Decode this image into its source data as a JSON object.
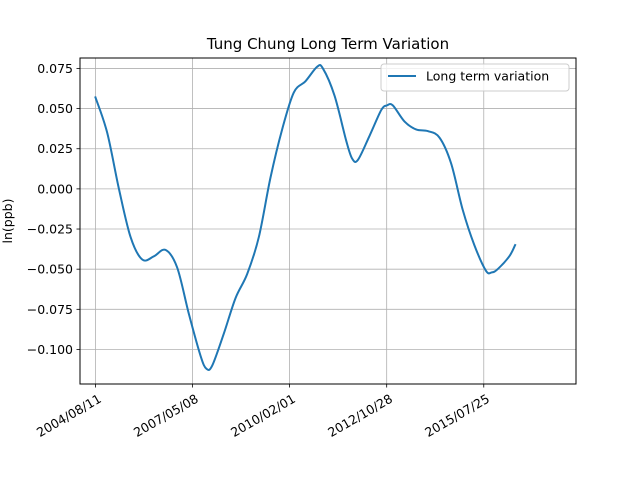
{
  "chart_data": {
    "type": "line",
    "title": "Tung Chung Long Term Variation",
    "xlabel": "",
    "ylabel": "ln(ppb)",
    "x_axis_type": "date",
    "xlim": [
      "2004/03/05",
      "2018/03/01"
    ],
    "ylim": [
      -0.1215,
      0.0815
    ],
    "x_ticks": [
      "2004/08/11",
      "2007/05/08",
      "2010/02/01",
      "2012/10/28",
      "2015/07/25"
    ],
    "y_ticks": [
      0.075,
      0.05,
      0.025,
      0.0,
      -0.025,
      -0.05,
      -0.075,
      -0.1
    ],
    "y_tick_labels": [
      "0.075",
      "0.050",
      "0.025",
      "0.000",
      "−0.025",
      "−0.050",
      "−0.075",
      "−0.100"
    ],
    "grid": true,
    "legend_position": "top-right",
    "colors": {
      "series": "#1f77b4",
      "grid": "#b0b0b0",
      "axes": "#000000"
    },
    "series": [
      {
        "name": "Long term variation",
        "points": [
          [
            "2004/08/11",
            0.057
          ],
          [
            "2004/12/10",
            0.035
          ],
          [
            "2005/04/10",
            0.0
          ],
          [
            "2005/08/08",
            -0.03
          ],
          [
            "2005/12/06",
            -0.044
          ],
          [
            "2006/04/05",
            -0.042
          ],
          [
            "2006/08/03",
            -0.038
          ],
          [
            "2006/12/01",
            -0.049
          ],
          [
            "2007/04/01",
            -0.078
          ],
          [
            "2007/07/30",
            -0.104
          ],
          [
            "2007/09/28",
            -0.112
          ],
          [
            "2007/11/27",
            -0.11
          ],
          [
            "2008/03/26",
            -0.09
          ],
          [
            "2008/07/24",
            -0.068
          ],
          [
            "2008/11/21",
            -0.053
          ],
          [
            "2009/03/21",
            -0.03
          ],
          [
            "2009/07/19",
            0.007
          ],
          [
            "2009/11/16",
            0.037
          ],
          [
            "2010/03/16",
            0.06
          ],
          [
            "2010/07/14",
            0.067
          ],
          [
            "2010/11/11",
            0.076
          ],
          [
            "2011/01/10",
            0.075
          ],
          [
            "2011/05/10",
            0.058
          ],
          [
            "2011/09/07",
            0.03
          ],
          [
            "2011/11/06",
            0.019
          ],
          [
            "2012/01/05",
            0.018
          ],
          [
            "2012/05/04",
            0.033
          ],
          [
            "2012/09/01",
            0.049
          ],
          [
            "2012/10/31",
            0.052
          ],
          [
            "2012/12/30",
            0.052
          ],
          [
            "2013/04/29",
            0.042
          ],
          [
            "2013/08/27",
            0.037
          ],
          [
            "2013/12/25",
            0.036
          ],
          [
            "2014/04/24",
            0.032
          ],
          [
            "2014/08/22",
            0.016
          ],
          [
            "2014/12/20",
            -0.013
          ],
          [
            "2015/04/19",
            -0.035
          ],
          [
            "2015/08/17",
            -0.051
          ],
          [
            "2015/10/16",
            -0.052
          ],
          [
            "2015/12/15",
            -0.05
          ],
          [
            "2016/04/13",
            -0.042
          ],
          [
            "2016/06/12",
            -0.035
          ]
        ]
      }
    ]
  }
}
